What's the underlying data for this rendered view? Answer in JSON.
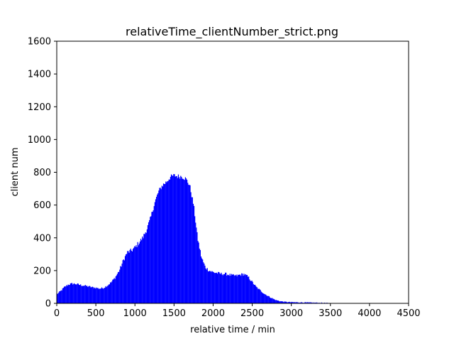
{
  "chart_data": {
    "type": "bar",
    "title": "relativeTime_clientNumber_strict.png",
    "xlabel": "relative time / min",
    "ylabel": "client num",
    "xlim": [
      0,
      4500
    ],
    "ylim": [
      0,
      1600
    ],
    "xticks": [
      "0",
      "500",
      "1000",
      "1500",
      "2000",
      "2500",
      "3000",
      "3500",
      "4000",
      "4500"
    ],
    "yticks": [
      "0",
      "200",
      "400",
      "600",
      "800",
      "1000",
      "1200",
      "1400",
      "1600"
    ],
    "grid": false,
    "legend": "none",
    "bar_color": "#0000ff",
    "bin_width_min": 10,
    "x": [
      0,
      50,
      100,
      150,
      200,
      250,
      300,
      350,
      400,
      450,
      500,
      550,
      600,
      650,
      700,
      750,
      800,
      850,
      900,
      950,
      1000,
      1050,
      1100,
      1150,
      1200,
      1250,
      1300,
      1350,
      1400,
      1450,
      1500,
      1550,
      1600,
      1650,
      1700,
      1750,
      1800,
      1850,
      1900,
      1950,
      2000,
      2050,
      2100,
      2150,
      2200,
      2250,
      2300,
      2350,
      2400,
      2450,
      2500,
      2550,
      2600,
      2650,
      2700,
      2750,
      2800,
      2850,
      2900,
      2950,
      3000,
      3100,
      3200,
      3300,
      3400,
      3450,
      3500,
      3600,
      4500
    ],
    "values": [
      55,
      75,
      100,
      115,
      120,
      118,
      112,
      108,
      104,
      98,
      95,
      90,
      95,
      110,
      130,
      160,
      200,
      260,
      310,
      320,
      340,
      370,
      400,
      450,
      520,
      610,
      680,
      720,
      740,
      770,
      780,
      775,
      775,
      760,
      720,
      600,
      400,
      280,
      220,
      200,
      190,
      185,
      180,
      180,
      175,
      170,
      168,
      175,
      178,
      160,
      130,
      100,
      80,
      60,
      45,
      32,
      20,
      14,
      10,
      8,
      7,
      6,
      5,
      4,
      3,
      2,
      0,
      0,
      0
    ]
  }
}
